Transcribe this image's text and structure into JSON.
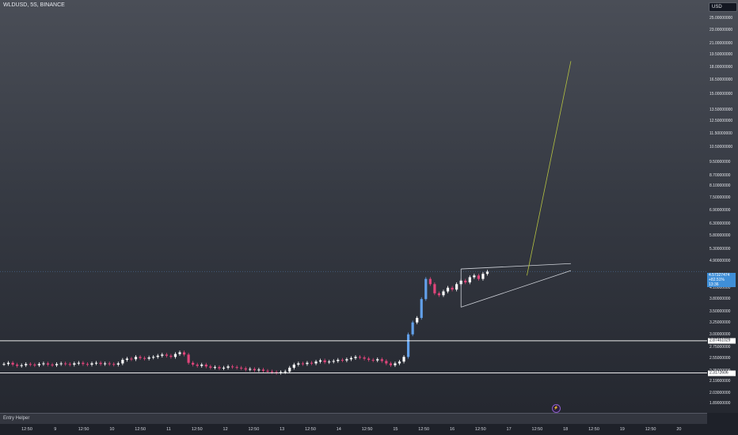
{
  "chart_data": {
    "type": "candlestick",
    "title": "WLDUSD, 5S, BINANCE",
    "currency": "USD",
    "scale": "log",
    "y_ticks": [
      "27.00000000",
      "25.00000000",
      "23.00000000",
      "21.00000000",
      "19.50000000",
      "18.00000000",
      "16.50000000",
      "15.00000000",
      "13.50000000",
      "12.50000000",
      "11.50000000",
      "10.50000000",
      "9.50000000",
      "8.70000000",
      "8.10000000",
      "7.50000000",
      "6.90000000",
      "6.30000000",
      "5.80000000",
      "5.30000000",
      "4.90000000",
      "4.10000000",
      "3.80000000",
      "3.50000000",
      "3.25000000",
      "3.00000000",
      "2.75000000",
      "2.55000000",
      "2.35000000",
      "2.19000000",
      "2.03000000",
      "1.89000000"
    ],
    "y_tick_values": [
      27.0,
      25.0,
      23.0,
      21.0,
      19.5,
      18.0,
      16.5,
      15.0,
      13.5,
      12.5,
      11.5,
      10.5,
      9.5,
      8.7,
      8.1,
      7.5,
      6.9,
      6.3,
      5.8,
      5.3,
      4.9,
      4.1,
      3.8,
      3.5,
      3.25,
      3.0,
      2.75,
      2.55,
      2.35,
      2.19,
      2.03,
      1.89
    ],
    "x_ticks": [
      "12:50",
      "9",
      "12:50",
      "10",
      "12:50",
      "11",
      "12:50",
      "12",
      "12:50",
      "13",
      "12:50",
      "14",
      "12:50",
      "15",
      "12:50",
      "16",
      "12:50",
      "17",
      "12:50",
      "18",
      "12:50",
      "19",
      "12:50",
      "20"
    ],
    "x_tick_index": [
      0,
      1,
      2,
      3,
      4,
      5,
      6,
      7,
      8,
      9,
      10,
      11,
      12,
      13,
      14,
      15,
      16,
      17,
      18,
      19,
      20,
      21,
      22,
      23
    ],
    "key_levels": [
      {
        "label": "2.87451029",
        "value": 2.87451029
      },
      {
        "label": "2.3172606",
        "value": 2.3172606
      }
    ],
    "last_price": {
      "value": "4.57327474",
      "change": "+82.51%",
      "countdown": "13:36"
    },
    "closes": [
      2.46,
      2.48,
      2.45,
      2.43,
      2.44,
      2.46,
      2.45,
      2.44,
      2.46,
      2.47,
      2.45,
      2.44,
      2.46,
      2.47,
      2.46,
      2.45,
      2.47,
      2.48,
      2.46,
      2.45,
      2.47,
      2.48,
      2.46,
      2.47,
      2.46,
      2.45,
      2.47,
      2.53,
      2.55,
      2.54,
      2.58,
      2.56,
      2.55,
      2.57,
      2.58,
      2.6,
      2.62,
      2.6,
      2.58,
      2.63,
      2.66,
      2.62,
      2.48,
      2.45,
      2.43,
      2.45,
      2.42,
      2.4,
      2.41,
      2.39,
      2.4,
      2.42,
      2.41,
      2.4,
      2.39,
      2.37,
      2.38,
      2.36,
      2.37,
      2.35,
      2.34,
      2.33,
      2.32,
      2.33,
      2.34,
      2.4,
      2.45,
      2.47,
      2.46,
      2.48,
      2.47,
      2.5,
      2.52,
      2.49,
      2.5,
      2.51,
      2.53,
      2.52,
      2.54,
      2.56,
      2.58,
      2.57,
      2.55,
      2.53,
      2.52,
      2.54,
      2.51,
      2.47,
      2.44,
      2.47,
      2.5,
      2.58,
      3.0,
      3.25,
      3.35,
      3.8,
      4.35,
      4.2,
      3.95,
      3.9,
      4.0,
      4.1,
      4.05,
      4.2,
      4.3,
      4.25,
      4.4,
      4.45,
      4.35,
      4.5,
      4.57
    ],
    "pattern": {
      "type": "rising-wedge",
      "upper": [
        [
          104,
          4.65
        ],
        [
          129,
          4.82
        ]
      ],
      "lower": [
        [
          104,
          3.6
        ],
        [
          129,
          4.6
        ]
      ]
    },
    "projection": {
      "from": [
        119,
        4.45
      ],
      "to": [
        129,
        18.7
      ]
    }
  },
  "panel": {
    "label": "Entry Helper"
  },
  "event_marker": {
    "glyph": "⚡"
  },
  "colors": {
    "up": "#ffffff",
    "down": "#e0457b",
    "breakout": "#62a0ea",
    "projection": "#b5c240",
    "wedge": "#d0d3da",
    "level": "#ffffff"
  }
}
